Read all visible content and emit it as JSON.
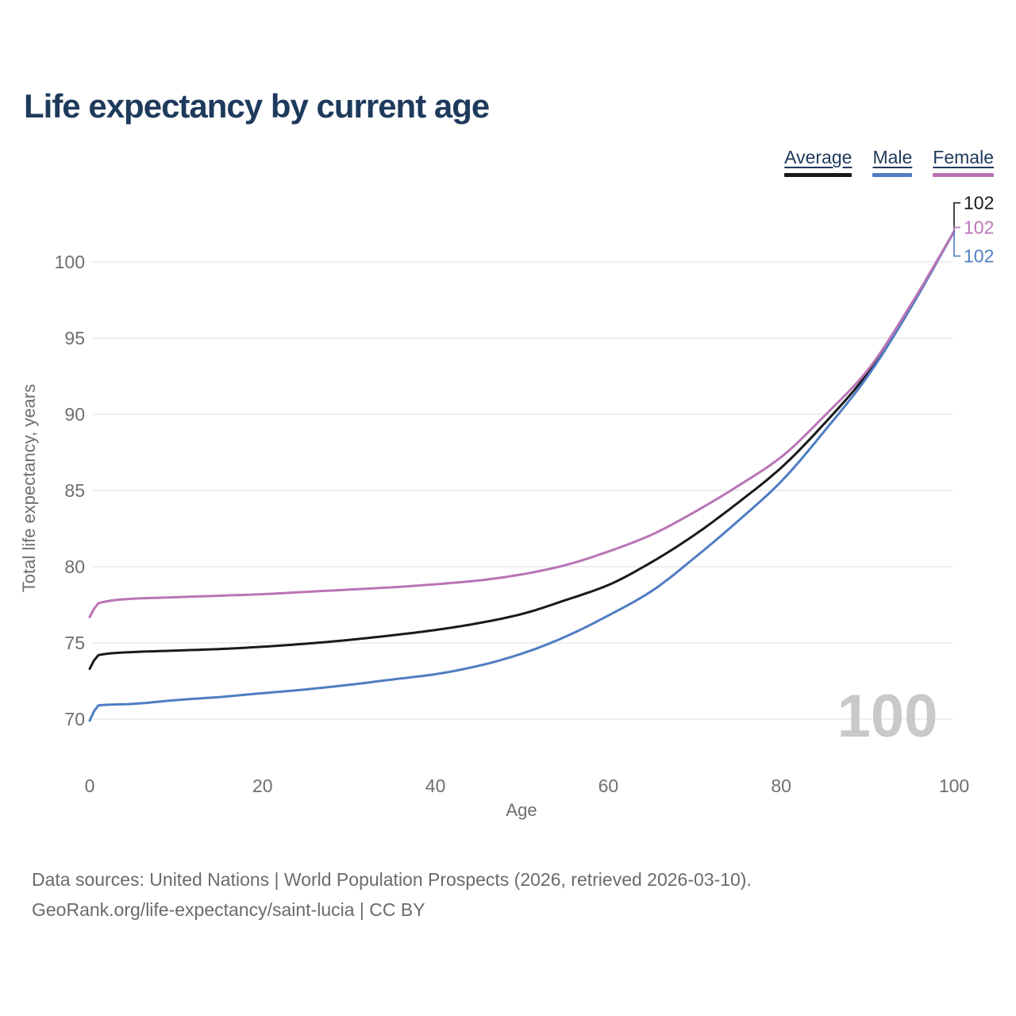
{
  "header": {
    "title": "Life expectancy by current age"
  },
  "legend": {
    "items": [
      {
        "label": "Average",
        "color": "#1a1a1a"
      },
      {
        "label": "Male",
        "color": "#4f7dc3"
      },
      {
        "label": "Female",
        "color": "#ba74b6"
      }
    ]
  },
  "chart_data": {
    "type": "line",
    "title": "Life expectancy by current age",
    "xlabel": "Age",
    "ylabel": "Total life expectancy, years",
    "xlim": [
      0,
      100
    ],
    "ylim": [
      68.5,
      103.5
    ],
    "x_ticks": [
      0,
      20,
      40,
      60,
      80,
      100
    ],
    "y_ticks": [
      70,
      75,
      80,
      85,
      90,
      95,
      100
    ],
    "grid": "horizontal",
    "legend_position": "top-right",
    "watermark": "100",
    "x": [
      0,
      1,
      5,
      10,
      15,
      20,
      25,
      30,
      35,
      40,
      45,
      50,
      55,
      60,
      65,
      70,
      75,
      80,
      85,
      90,
      95,
      100
    ],
    "series": [
      {
        "name": "Average",
        "color": "#1a1a1a",
        "end_label": "102",
        "values": [
          73.3,
          74.2,
          74.4,
          74.5,
          74.6,
          74.75,
          74.95,
          75.2,
          75.5,
          75.85,
          76.3,
          76.9,
          77.8,
          78.8,
          80.3,
          82.1,
          84.2,
          86.5,
          89.4,
          92.7,
          97.1,
          102
        ]
      },
      {
        "name": "Male",
        "color": "#4f7dc3",
        "end_label": "102",
        "values": [
          69.9,
          70.9,
          71.0,
          71.25,
          71.45,
          71.7,
          71.95,
          72.25,
          72.6,
          72.95,
          73.5,
          74.3,
          75.4,
          76.8,
          78.4,
          80.6,
          83.0,
          85.6,
          88.9,
          92.5,
          97.0,
          102
        ]
      },
      {
        "name": "Female",
        "color": "#ba74b6",
        "end_label": "102",
        "values": [
          76.7,
          77.6,
          77.9,
          78.0,
          78.1,
          78.2,
          78.35,
          78.5,
          78.65,
          78.85,
          79.1,
          79.5,
          80.1,
          81.0,
          82.1,
          83.6,
          85.3,
          87.2,
          89.9,
          92.9,
          97.2,
          102
        ]
      }
    ]
  },
  "colors": {
    "background": "#ffffff",
    "title_text": "#1e3a5c",
    "legend_text": "#1e3a5c",
    "axis_text": "#6e6e6e",
    "grid_line": "#e9e9e9",
    "watermark": "#c9c9c9",
    "footer_text": "#6b6b6b"
  },
  "footer": {
    "line1": "Data sources: United Nations | World Population Prospects (2026, retrieved 2026-03-10).",
    "line2": "GeoRank.org/life-expectancy/saint-lucia | CC BY"
  }
}
